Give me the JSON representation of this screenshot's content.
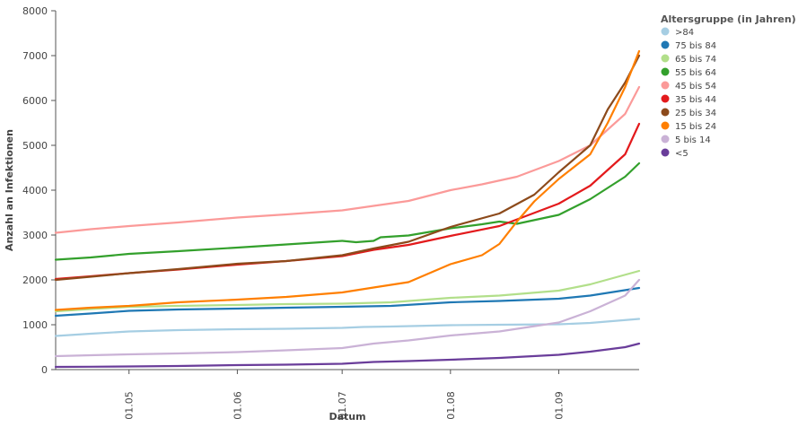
{
  "chart_data": {
    "type": "line",
    "xlabel": "Datum",
    "ylabel": "Anzahl an Infektionen",
    "x_ticks": [
      "01.05",
      "01.06",
      "01.07",
      "01.08",
      "01.09"
    ],
    "x_range": [
      "2020-04-10",
      "2020-09-24"
    ],
    "y_ticks": [
      0,
      1000,
      2000,
      3000,
      4000,
      5000,
      6000,
      7000,
      8000
    ],
    "ylim": [
      0,
      8000
    ],
    "grid": false,
    "legend": {
      "title": "Altersgruppe (in Jahren)",
      "placement": "right"
    },
    "series": [
      {
        "name": ">84",
        "color": "#a6cee3",
        "points": [
          [
            "2020-04-10",
            750
          ],
          [
            "2020-04-20",
            800
          ],
          [
            "2020-05-01",
            850
          ],
          [
            "2020-05-15",
            880
          ],
          [
            "2020-06-01",
            900
          ],
          [
            "2020-06-15",
            910
          ],
          [
            "2020-07-01",
            930
          ],
          [
            "2020-07-07",
            950
          ],
          [
            "2020-07-15",
            960
          ],
          [
            "2020-08-01",
            990
          ],
          [
            "2020-08-15",
            1000
          ],
          [
            "2020-09-01",
            1010
          ],
          [
            "2020-09-10",
            1040
          ],
          [
            "2020-09-24",
            1130
          ]
        ]
      },
      {
        "name": "75 bis 84",
        "color": "#1f78b4",
        "points": [
          [
            "2020-04-10",
            1200
          ],
          [
            "2020-04-20",
            1250
          ],
          [
            "2020-05-01",
            1310
          ],
          [
            "2020-05-15",
            1340
          ],
          [
            "2020-06-01",
            1360
          ],
          [
            "2020-06-15",
            1380
          ],
          [
            "2020-07-01",
            1400
          ],
          [
            "2020-07-15",
            1420
          ],
          [
            "2020-08-01",
            1500
          ],
          [
            "2020-08-15",
            1530
          ],
          [
            "2020-09-01",
            1580
          ],
          [
            "2020-09-10",
            1650
          ],
          [
            "2020-09-24",
            1820
          ]
        ]
      },
      {
        "name": "65 bis 74",
        "color": "#b2df8a",
        "points": [
          [
            "2020-04-10",
            1300
          ],
          [
            "2020-04-20",
            1350
          ],
          [
            "2020-05-01",
            1400
          ],
          [
            "2020-05-15",
            1420
          ],
          [
            "2020-06-01",
            1440
          ],
          [
            "2020-06-15",
            1460
          ],
          [
            "2020-07-01",
            1470
          ],
          [
            "2020-07-15",
            1500
          ],
          [
            "2020-08-01",
            1600
          ],
          [
            "2020-08-15",
            1650
          ],
          [
            "2020-09-01",
            1760
          ],
          [
            "2020-09-10",
            1900
          ],
          [
            "2020-09-24",
            2200
          ]
        ]
      },
      {
        "name": "55 bis 64",
        "color": "#33a02c",
        "points": [
          [
            "2020-04-10",
            2450
          ],
          [
            "2020-04-20",
            2500
          ],
          [
            "2020-05-01",
            2580
          ],
          [
            "2020-05-15",
            2640
          ],
          [
            "2020-06-01",
            2720
          ],
          [
            "2020-06-15",
            2790
          ],
          [
            "2020-07-01",
            2870
          ],
          [
            "2020-07-05",
            2840
          ],
          [
            "2020-07-10",
            2870
          ],
          [
            "2020-07-12",
            2950
          ],
          [
            "2020-07-20",
            2990
          ],
          [
            "2020-08-01",
            3150
          ],
          [
            "2020-08-10",
            3240
          ],
          [
            "2020-08-15",
            3300
          ],
          [
            "2020-08-20",
            3250
          ],
          [
            "2020-09-01",
            3450
          ],
          [
            "2020-09-10",
            3800
          ],
          [
            "2020-09-20",
            4300
          ],
          [
            "2020-09-24",
            4600
          ]
        ]
      },
      {
        "name": "45 bis 54",
        "color": "#fb9a99",
        "points": [
          [
            "2020-04-10",
            3050
          ],
          [
            "2020-04-20",
            3130
          ],
          [
            "2020-05-01",
            3200
          ],
          [
            "2020-05-15",
            3280
          ],
          [
            "2020-06-01",
            3390
          ],
          [
            "2020-06-15",
            3460
          ],
          [
            "2020-07-01",
            3550
          ],
          [
            "2020-07-10",
            3650
          ],
          [
            "2020-07-20",
            3760
          ],
          [
            "2020-08-01",
            4000
          ],
          [
            "2020-08-10",
            4130
          ],
          [
            "2020-08-20",
            4300
          ],
          [
            "2020-09-01",
            4650
          ],
          [
            "2020-09-10",
            5000
          ],
          [
            "2020-09-20",
            5700
          ],
          [
            "2020-09-24",
            6300
          ]
        ]
      },
      {
        "name": "35 bis 44",
        "color": "#e31a1c",
        "points": [
          [
            "2020-04-10",
            2020
          ],
          [
            "2020-04-20",
            2080
          ],
          [
            "2020-05-01",
            2150
          ],
          [
            "2020-05-15",
            2230
          ],
          [
            "2020-06-01",
            2340
          ],
          [
            "2020-06-15",
            2420
          ],
          [
            "2020-07-01",
            2530
          ],
          [
            "2020-07-10",
            2670
          ],
          [
            "2020-07-20",
            2780
          ],
          [
            "2020-08-01",
            2980
          ],
          [
            "2020-08-15",
            3200
          ],
          [
            "2020-09-01",
            3700
          ],
          [
            "2020-09-10",
            4100
          ],
          [
            "2020-09-20",
            4800
          ],
          [
            "2020-09-24",
            5480
          ]
        ]
      },
      {
        "name": "25 bis 34",
        "color": "#8c4a1b",
        "points": [
          [
            "2020-04-10",
            2000
          ],
          [
            "2020-04-20",
            2070
          ],
          [
            "2020-05-01",
            2150
          ],
          [
            "2020-05-15",
            2240
          ],
          [
            "2020-06-01",
            2360
          ],
          [
            "2020-06-15",
            2420
          ],
          [
            "2020-07-01",
            2550
          ],
          [
            "2020-07-10",
            2700
          ],
          [
            "2020-07-20",
            2850
          ],
          [
            "2020-08-01",
            3180
          ],
          [
            "2020-08-15",
            3480
          ],
          [
            "2020-08-25",
            3900
          ],
          [
            "2020-09-01",
            4400
          ],
          [
            "2020-09-10",
            5000
          ],
          [
            "2020-09-15",
            5800
          ],
          [
            "2020-09-20",
            6400
          ],
          [
            "2020-09-24",
            7000
          ]
        ]
      },
      {
        "name": "15 bis 24",
        "color": "#ff7f00",
        "points": [
          [
            "2020-04-10",
            1330
          ],
          [
            "2020-04-20",
            1380
          ],
          [
            "2020-05-01",
            1420
          ],
          [
            "2020-05-15",
            1500
          ],
          [
            "2020-06-01",
            1560
          ],
          [
            "2020-06-15",
            1620
          ],
          [
            "2020-07-01",
            1720
          ],
          [
            "2020-07-10",
            1830
          ],
          [
            "2020-07-20",
            1950
          ],
          [
            "2020-08-01",
            2350
          ],
          [
            "2020-08-10",
            2550
          ],
          [
            "2020-08-15",
            2800
          ],
          [
            "2020-08-20",
            3300
          ],
          [
            "2020-08-25",
            3750
          ],
          [
            "2020-09-01",
            4250
          ],
          [
            "2020-09-10",
            4800
          ],
          [
            "2020-09-15",
            5500
          ],
          [
            "2020-09-20",
            6300
          ],
          [
            "2020-09-24",
            7100
          ]
        ]
      },
      {
        "name": "5 bis 14",
        "color": "#cab2d6",
        "points": [
          [
            "2020-04-10",
            300
          ],
          [
            "2020-04-20",
            320
          ],
          [
            "2020-05-01",
            340
          ],
          [
            "2020-05-15",
            360
          ],
          [
            "2020-06-01",
            390
          ],
          [
            "2020-06-15",
            430
          ],
          [
            "2020-07-01",
            480
          ],
          [
            "2020-07-10",
            580
          ],
          [
            "2020-07-20",
            650
          ],
          [
            "2020-08-01",
            760
          ],
          [
            "2020-08-15",
            850
          ],
          [
            "2020-09-01",
            1050
          ],
          [
            "2020-09-10",
            1300
          ],
          [
            "2020-09-20",
            1650
          ],
          [
            "2020-09-24",
            2000
          ]
        ]
      },
      {
        "name": "<5",
        "color": "#6a3d9a",
        "points": [
          [
            "2020-04-10",
            60
          ],
          [
            "2020-04-20",
            65
          ],
          [
            "2020-05-01",
            70
          ],
          [
            "2020-05-15",
            80
          ],
          [
            "2020-06-01",
            100
          ],
          [
            "2020-06-15",
            110
          ],
          [
            "2020-07-01",
            130
          ],
          [
            "2020-07-10",
            170
          ],
          [
            "2020-07-20",
            190
          ],
          [
            "2020-08-01",
            220
          ],
          [
            "2020-08-15",
            260
          ],
          [
            "2020-09-01",
            330
          ],
          [
            "2020-09-10",
            400
          ],
          [
            "2020-09-20",
            500
          ],
          [
            "2020-09-24",
            580
          ]
        ]
      }
    ]
  }
}
